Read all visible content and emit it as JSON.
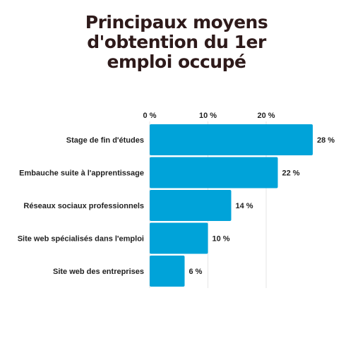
{
  "chart_data": {
    "type": "bar",
    "orientation": "horizontal",
    "title_lines": [
      "Principaux moyens",
      "d'obtention du 1er",
      "emploi occupé"
    ],
    "categories": [
      "Stage de fin d'études",
      "Embauche suite à l'apprentissage",
      "Réseaux sociaux professionnels",
      "Site web spécialisés dans l'emploi",
      "Site web des entreprises"
    ],
    "values": [
      28,
      22,
      14,
      10,
      6
    ],
    "value_labels": [
      "28 %",
      "22 %",
      "14 %",
      "10 %",
      "6 %"
    ],
    "x_ticks": [
      0,
      10,
      20
    ],
    "x_tick_labels": [
      "0 %",
      "10 %",
      "20 %"
    ],
    "xlim": [
      0,
      28
    ],
    "xaxis_position": "top",
    "grid": true,
    "bar_color": "#00a3d9"
  }
}
